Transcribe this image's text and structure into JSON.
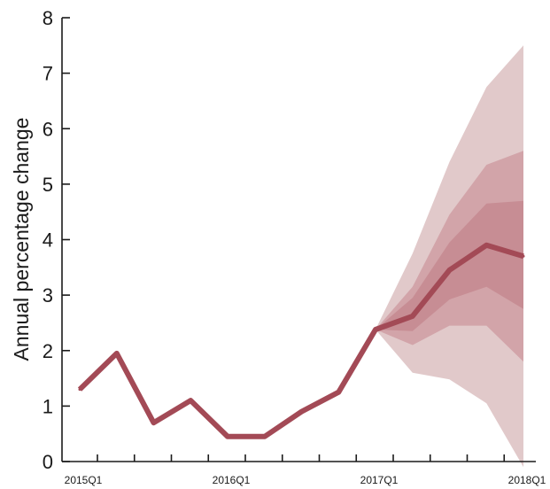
{
  "chart_data": {
    "type": "line",
    "title": "",
    "xlabel": "",
    "ylabel": "Annual percentage change",
    "ylim": [
      0,
      8
    ],
    "yticks": [
      0,
      1,
      2,
      3,
      4,
      5,
      6,
      7,
      8
    ],
    "xlim": [
      0,
      12
    ],
    "x_tick_labels": [
      {
        "label": "2015Q1",
        "x": 0
      },
      {
        "label": "2016Q1",
        "x": 4
      },
      {
        "label": "2017Q1",
        "x": 8
      },
      {
        "label": "2018Q1",
        "x": 12
      }
    ],
    "grid": false,
    "colors": {
      "line": "#a34a56",
      "band_outer": "#dcbfc1",
      "band_middle": "#cf9ea3",
      "band_inner": "#c68a90"
    },
    "series": [
      {
        "x": [
          0,
          1,
          2,
          3,
          4,
          5,
          6,
          7,
          8,
          9,
          10,
          11,
          12
        ],
        "values": [
          1.3,
          1.95,
          0.7,
          1.1,
          0.45,
          0.45,
          0.9,
          1.25,
          2.38,
          2.62,
          3.45,
          3.9,
          3.7
        ]
      }
    ],
    "fan_bands": [
      {
        "level": "outer",
        "x": [
          8,
          9,
          10,
          11,
          12
        ],
        "lower": [
          2.38,
          1.6,
          1.48,
          1.05,
          -0.1
        ],
        "upper": [
          2.38,
          3.75,
          5.4,
          6.75,
          7.5
        ]
      },
      {
        "level": "middle",
        "x": [
          8,
          9,
          10,
          11,
          12
        ],
        "lower": [
          2.38,
          2.1,
          2.45,
          2.45,
          1.8
        ],
        "upper": [
          2.38,
          3.15,
          4.45,
          5.35,
          5.6
        ]
      },
      {
        "level": "inner",
        "x": [
          8,
          9,
          10,
          11,
          12
        ],
        "lower": [
          2.38,
          2.35,
          2.92,
          3.15,
          2.75
        ],
        "upper": [
          2.38,
          2.95,
          3.95,
          4.65,
          4.7
        ]
      }
    ]
  }
}
